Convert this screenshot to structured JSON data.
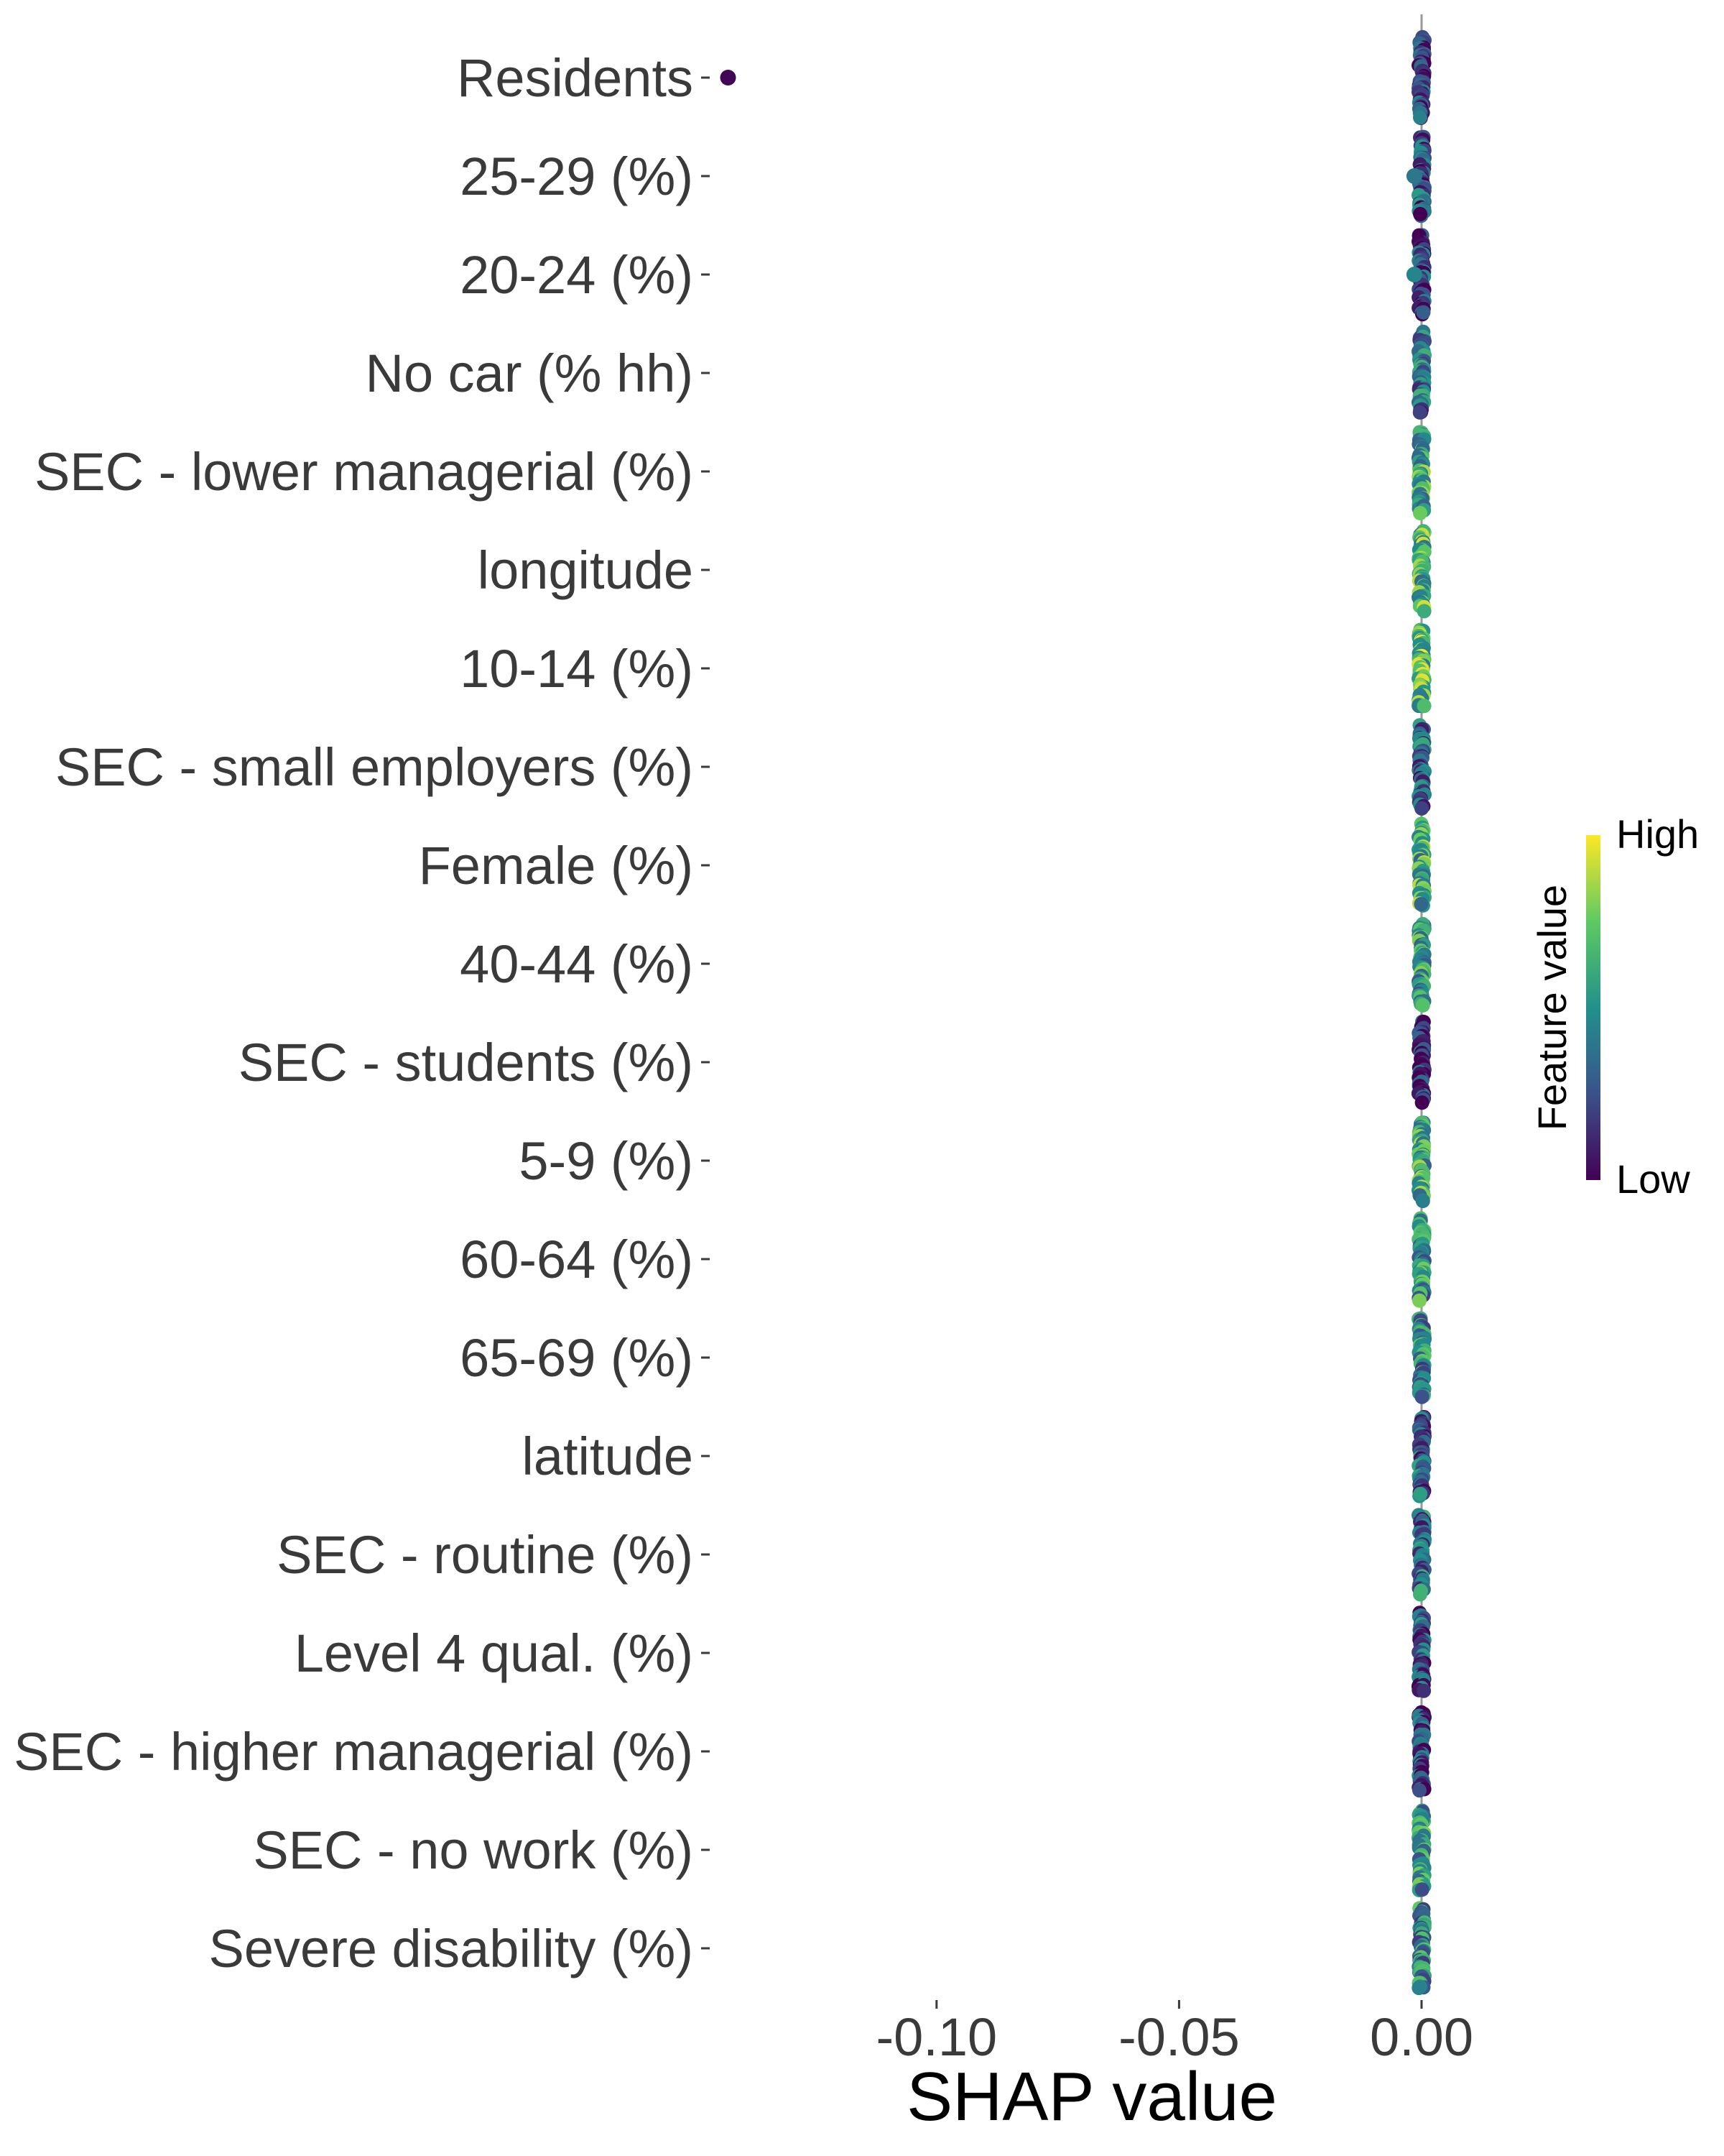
{
  "chart_data": {
    "type": "scatter",
    "subtype": "shap-beeswarm",
    "xlabel": "SHAP value",
    "xlim": [
      -0.145,
      0.012
    ],
    "xticks": [
      -0.1,
      -0.05,
      0.0
    ],
    "xtick_labels": [
      "-0.10",
      "-0.05",
      "0.00"
    ],
    "reference_line_x": 0,
    "grid": false,
    "features": [
      "Residents",
      "25-29 (%)",
      "20-24 (%)",
      "No car (% hh)",
      "SEC - lower managerial (%)",
      "longitude",
      "10-14 (%)",
      "SEC - small employers (%)",
      "Female (%)",
      "40-44 (%)",
      "SEC - students (%)",
      "5-9 (%)",
      "60-64 (%)",
      "65-69 (%)",
      "latitude",
      "SEC - routine (%)",
      "Level 4 qual. (%)",
      "SEC - higher managerial (%)",
      "SEC - no work (%)",
      "Severe disability (%)"
    ],
    "outliers": [
      {
        "feature": "Residents",
        "shap": -0.143,
        "feature_value": 0.02
      },
      {
        "feature": "25-29 (%)",
        "shap": -0.0015,
        "feature_value": 0.4
      },
      {
        "feature": "20-24 (%)",
        "shap": -0.0015,
        "feature_value": 0.45
      }
    ],
    "feature_value_bias": [
      0.15,
      0.25,
      0.2,
      0.35,
      0.6,
      0.65,
      0.7,
      0.3,
      0.62,
      0.55,
      0.12,
      0.6,
      0.5,
      0.45,
      0.3,
      0.35,
      0.25,
      0.2,
      0.5,
      0.45
    ],
    "legend": {
      "title": "Feature value",
      "high_label": "High",
      "low_label": "Low",
      "placement": "right",
      "colors": [
        "#440154",
        "#3b528b",
        "#21918c",
        "#5ec962",
        "#fde725"
      ]
    }
  }
}
